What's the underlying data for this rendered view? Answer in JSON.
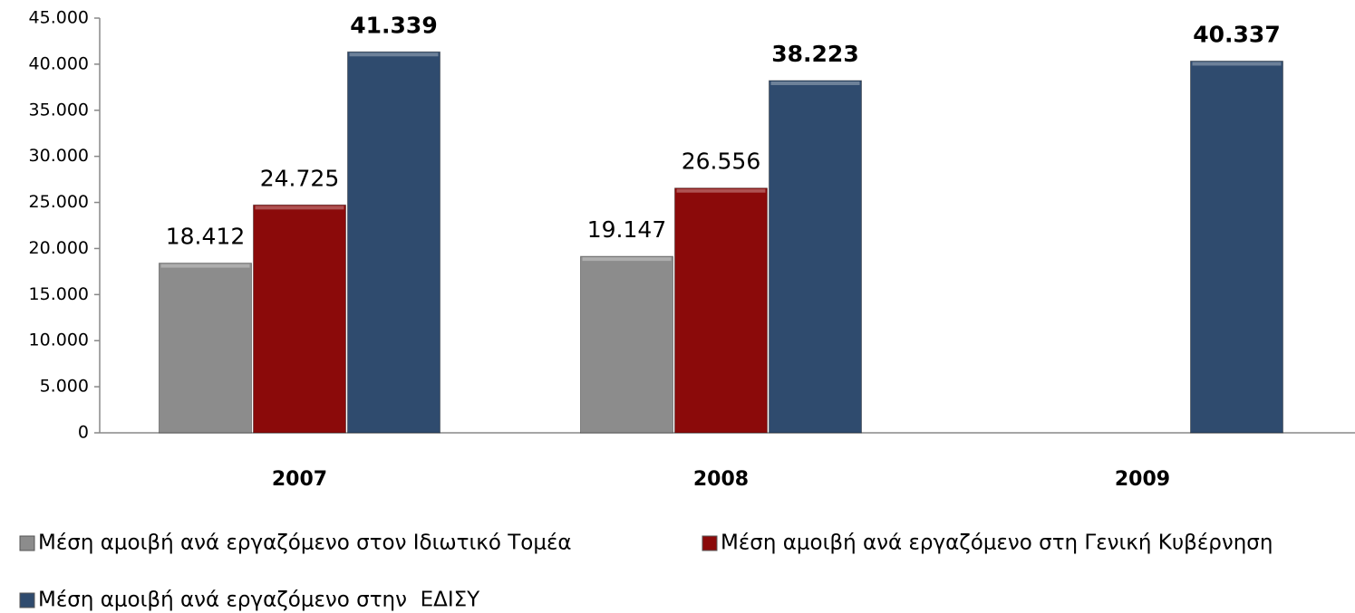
{
  "chart_data": {
    "type": "bar",
    "categories": [
      "2007",
      "2008",
      "2009"
    ],
    "series": [
      {
        "name": "Μέση αμοιβή ανά εργαζόμενο στον Ιδιωτικό Τομέα",
        "color": "#8c8c8c",
        "values": [
          18412,
          19147,
          null
        ],
        "value_labels": [
          "18.412",
          "19.147",
          null
        ]
      },
      {
        "name": "Μέση αμοιβή ανά εργαζόμενο στη Γενική Κυβέρνηση",
        "color": "#8b0a0a",
        "values": [
          24725,
          26556,
          null
        ],
        "value_labels": [
          "24.725",
          "26.556",
          null
        ]
      },
      {
        "name": "Μέση αμοιβή ανά εργαζόμενο στην  ΕΔΙΣΥ",
        "color": "#2f4b6e",
        "values": [
          41339,
          38223,
          40337
        ],
        "value_labels": [
          "41.339",
          "38.223",
          "40.337"
        ]
      }
    ],
    "ylim": [
      0,
      45000
    ],
    "yticks": [
      0,
      {
        "value": 5000,
        "label": "5.000"
      },
      {
        "value": 10000,
        "label": "10.000"
      },
      {
        "value": 15000,
        "label": "15.000"
      },
      {
        "value": 20000,
        "label": "20.000"
      },
      {
        "value": 25000,
        "label": "25.000"
      },
      {
        "value": 30000,
        "label": "30.000"
      },
      {
        "value": 35000,
        "label": "35.000"
      },
      {
        "value": 40000,
        "label": "40.000"
      },
      {
        "value": 45000,
        "label": "45.000"
      }
    ],
    "grid": false
  }
}
